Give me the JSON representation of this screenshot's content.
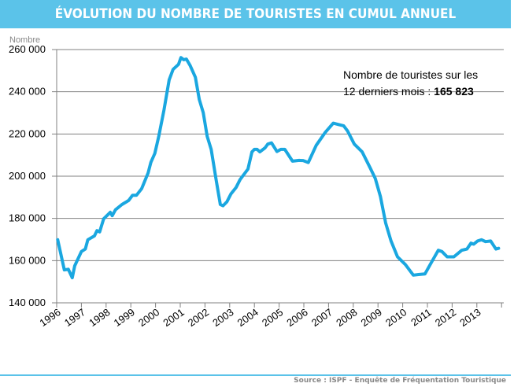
{
  "header": {
    "title": "ÉVOLUTION DU NOMBRE DE TOURISTES EN CUMUL ANNUEL"
  },
  "annotation": {
    "line1": "Nombre de touristes sur les",
    "line2_prefix": "12 derniers mois : ",
    "line2_value": "165 823"
  },
  "footer": {
    "source": "Source : ISPF - Enquête de Fréquentation Touristique"
  },
  "colors": {
    "header": "#5bc3e9",
    "series": "#1aa7e0",
    "grid": "#808080"
  },
  "chart_data": {
    "type": "line",
    "title": "ÉVOLUTION DU NOMBRE DE TOURISTES EN CUMUL ANNUEL",
    "ylabel": "Nombre",
    "xlabel": "",
    "ylim": [
      140000,
      260000
    ],
    "xlim": [
      1996,
      2014
    ],
    "yticks": [
      {
        "v": 140000,
        "label": "140 000"
      },
      {
        "v": 160000,
        "label": "160 000"
      },
      {
        "v": 180000,
        "label": "180 000"
      },
      {
        "v": 200000,
        "label": "200 000"
      },
      {
        "v": 220000,
        "label": "220 000"
      },
      {
        "v": 240000,
        "label": "240 000"
      },
      {
        "v": 260000,
        "label": "260 000"
      }
    ],
    "xticks": [
      "1996",
      "1997",
      "1998",
      "1999",
      "2000",
      "2001",
      "2002",
      "2003",
      "2004",
      "2005",
      "2006",
      "2007",
      "2008",
      "2009",
      "2010",
      "2011",
      "2012",
      "2013"
    ],
    "grid": true,
    "series": [
      {
        "points": [
          [
            1996.04,
            169900
          ],
          [
            1996.31,
            155600
          ],
          [
            1996.47,
            155900
          ],
          [
            1996.63,
            151900
          ],
          [
            1996.73,
            157500
          ],
          [
            1997.0,
            164300
          ],
          [
            1997.16,
            165500
          ],
          [
            1997.26,
            169900
          ],
          [
            1997.53,
            171700
          ],
          [
            1997.63,
            174200
          ],
          [
            1997.74,
            173600
          ],
          [
            1997.9,
            179800
          ],
          [
            1998.17,
            182900
          ],
          [
            1998.25,
            181300
          ],
          [
            1998.38,
            184100
          ],
          [
            1998.64,
            186600
          ],
          [
            1998.91,
            188500
          ],
          [
            1999.07,
            191000
          ],
          [
            1999.23,
            191000
          ],
          [
            1999.44,
            194100
          ],
          [
            1999.7,
            201600
          ],
          [
            1999.81,
            206500
          ],
          [
            1999.97,
            210800
          ],
          [
            2000.13,
            218900
          ],
          [
            2000.34,
            231300
          ],
          [
            2000.55,
            245600
          ],
          [
            2000.71,
            250600
          ],
          [
            2000.93,
            253000
          ],
          [
            2001.03,
            256200
          ],
          [
            2001.14,
            255200
          ],
          [
            2001.25,
            255500
          ],
          [
            2001.4,
            252400
          ],
          [
            2001.61,
            246900
          ],
          [
            2001.77,
            236300
          ],
          [
            2001.93,
            230100
          ],
          [
            2002.09,
            218900
          ],
          [
            2002.25,
            212700
          ],
          [
            2002.46,
            197800
          ],
          [
            2002.62,
            186600
          ],
          [
            2002.73,
            186000
          ],
          [
            2002.89,
            187900
          ],
          [
            2003.05,
            191600
          ],
          [
            2003.26,
            194700
          ],
          [
            2003.42,
            198400
          ],
          [
            2003.74,
            203400
          ],
          [
            2003.9,
            211500
          ],
          [
            2004.0,
            212700
          ],
          [
            2004.11,
            212700
          ],
          [
            2004.22,
            211500
          ],
          [
            2004.43,
            213400
          ],
          [
            2004.54,
            215200
          ],
          [
            2004.69,
            215800
          ],
          [
            2004.91,
            211700
          ],
          [
            2005.07,
            212700
          ],
          [
            2005.23,
            212700
          ],
          [
            2005.54,
            207100
          ],
          [
            2005.81,
            207500
          ],
          [
            2005.97,
            207400
          ],
          [
            2006.18,
            206500
          ],
          [
            2006.5,
            214600
          ],
          [
            2006.87,
            220800
          ],
          [
            2007.19,
            225100
          ],
          [
            2007.4,
            224500
          ],
          [
            2007.61,
            223900
          ],
          [
            2007.77,
            221400
          ],
          [
            2008.04,
            215200
          ],
          [
            2008.36,
            211500
          ],
          [
            2008.68,
            204000
          ],
          [
            2008.89,
            199000
          ],
          [
            2009.1,
            190400
          ],
          [
            2009.31,
            177900
          ],
          [
            2009.53,
            169300
          ],
          [
            2009.79,
            161800
          ],
          [
            2010.11,
            158100
          ],
          [
            2010.43,
            153100
          ],
          [
            2010.64,
            153400
          ],
          [
            2010.9,
            153700
          ],
          [
            2011.17,
            159300
          ],
          [
            2011.44,
            164900
          ],
          [
            2011.59,
            164300
          ],
          [
            2011.8,
            161800
          ],
          [
            2012.07,
            161800
          ],
          [
            2012.39,
            164900
          ],
          [
            2012.6,
            165500
          ],
          [
            2012.76,
            168300
          ],
          [
            2012.87,
            167800
          ],
          [
            2013.03,
            169300
          ],
          [
            2013.19,
            169900
          ],
          [
            2013.35,
            169000
          ],
          [
            2013.56,
            169300
          ],
          [
            2013.77,
            165500
          ],
          [
            2013.88,
            165823
          ]
        ]
      }
    ]
  }
}
